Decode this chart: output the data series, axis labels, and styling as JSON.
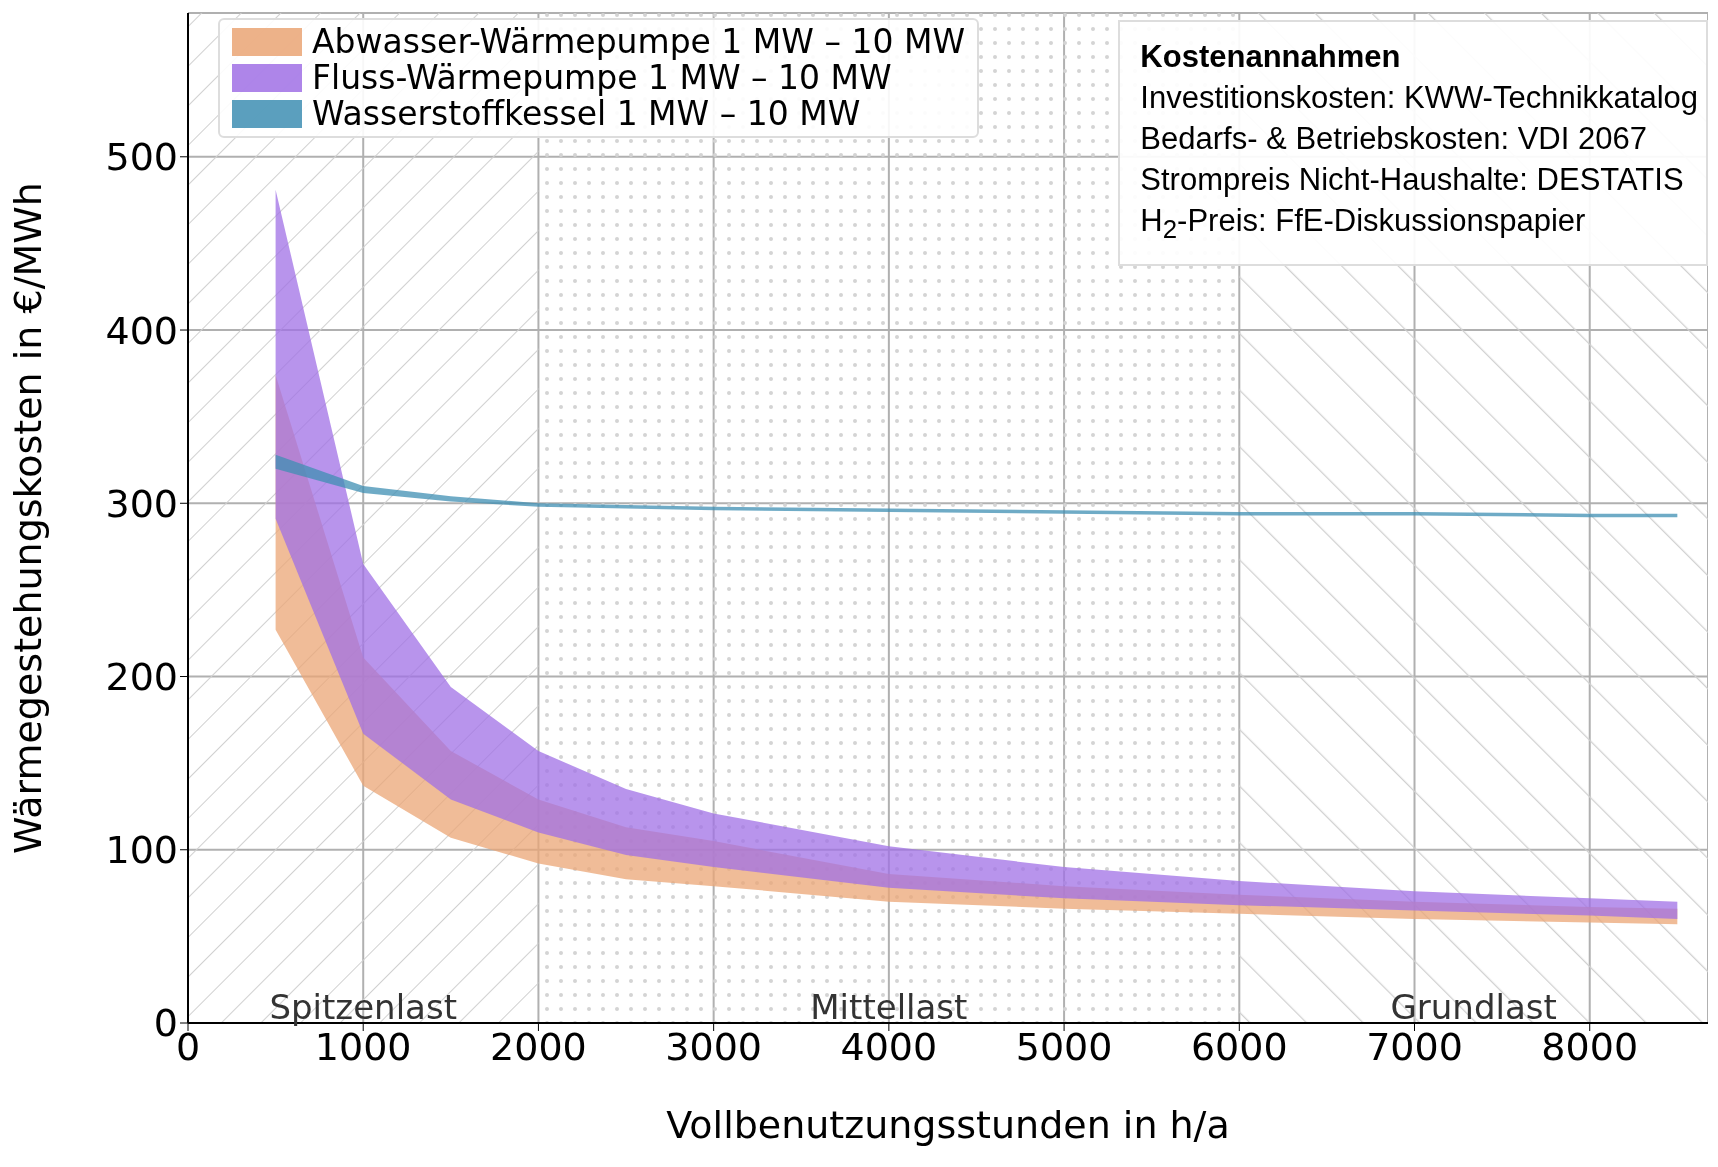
{
  "chart_data": {
    "type": "area",
    "xlabel": "Vollbenutzungsstunden in h/a",
    "ylabel": "Wärmegestehungskosten in €/MWh",
    "x": [
      500,
      1000,
      1500,
      2000,
      2500,
      3000,
      4000,
      5000,
      6000,
      7000,
      8000,
      8500
    ],
    "series": [
      {
        "name": "Abwasser-Wärmepumpe 1 MW – 10 MW",
        "color": "#eba575",
        "values": [
          null,
          null,
          null,
          null,
          null,
          null,
          null,
          null,
          null,
          null,
          null,
          null
        ],
        "lower": [
          227,
          137,
          107,
          92,
          83,
          79,
          70,
          66,
          63,
          60,
          58,
          57
        ],
        "upper": [
          374,
          211,
          157,
          129,
          113,
          105,
          86,
          79,
          74,
          70,
          67,
          66
        ]
      },
      {
        "name": "Fluss-Wärmepumpe 1 MW – 10 MW",
        "color": "#a070e6",
        "values": [
          null,
          null,
          null,
          null,
          null,
          null,
          null,
          null,
          null,
          null,
          null,
          null
        ],
        "lower": [
          291,
          167,
          129,
          110,
          97,
          90,
          78,
          72,
          68,
          65,
          62,
          60
        ],
        "upper": [
          481,
          265,
          194,
          157,
          135,
          121,
          102,
          90,
          82,
          76,
          72,
          70
        ]
      },
      {
        "name": "Wasserstoffkessel 1 MW – 10 MW",
        "color": "#3f8fb3",
        "values": [
          null,
          null,
          null,
          null,
          null,
          null,
          null,
          null,
          null,
          null,
          null,
          null
        ],
        "lower": [
          320,
          306,
          301,
          298,
          297,
          296,
          295,
          294,
          293,
          293,
          292,
          292
        ],
        "upper": [
          328,
          310,
          304,
          300,
          299,
          298,
          297,
          296,
          295,
          295,
          294,
          294
        ]
      }
    ],
    "xlim": [
      0,
      8675
    ],
    "ylim": [
      0,
      583
    ],
    "xticks": [
      0,
      1000,
      2000,
      3000,
      4000,
      5000,
      6000,
      7000,
      8000
    ],
    "yticks": [
      0,
      100,
      200,
      300,
      400,
      500
    ],
    "grid": true,
    "legend": "top left",
    "bands": [
      {
        "axis": "x",
        "from": 0,
        "to": 2000,
        "label": "Spitzenlast"
      },
      {
        "axis": "x",
        "from": 2000,
        "to": 6000,
        "label": "Mittellast"
      },
      {
        "axis": "x",
        "from": 6000,
        "to": 8675,
        "label": "Grundlast"
      }
    ],
    "annotations": [
      "Kostenannahmen",
      "Investitionskosten: KWW-Technikkatalog",
      "Bedarfs- & Betriebskosten: VDI 2067",
      "Strompreis Nicht-Haushalte: DESTATIS",
      "H$_{2}$-Preis: FfE-Diskussionspapier"
    ]
  }
}
